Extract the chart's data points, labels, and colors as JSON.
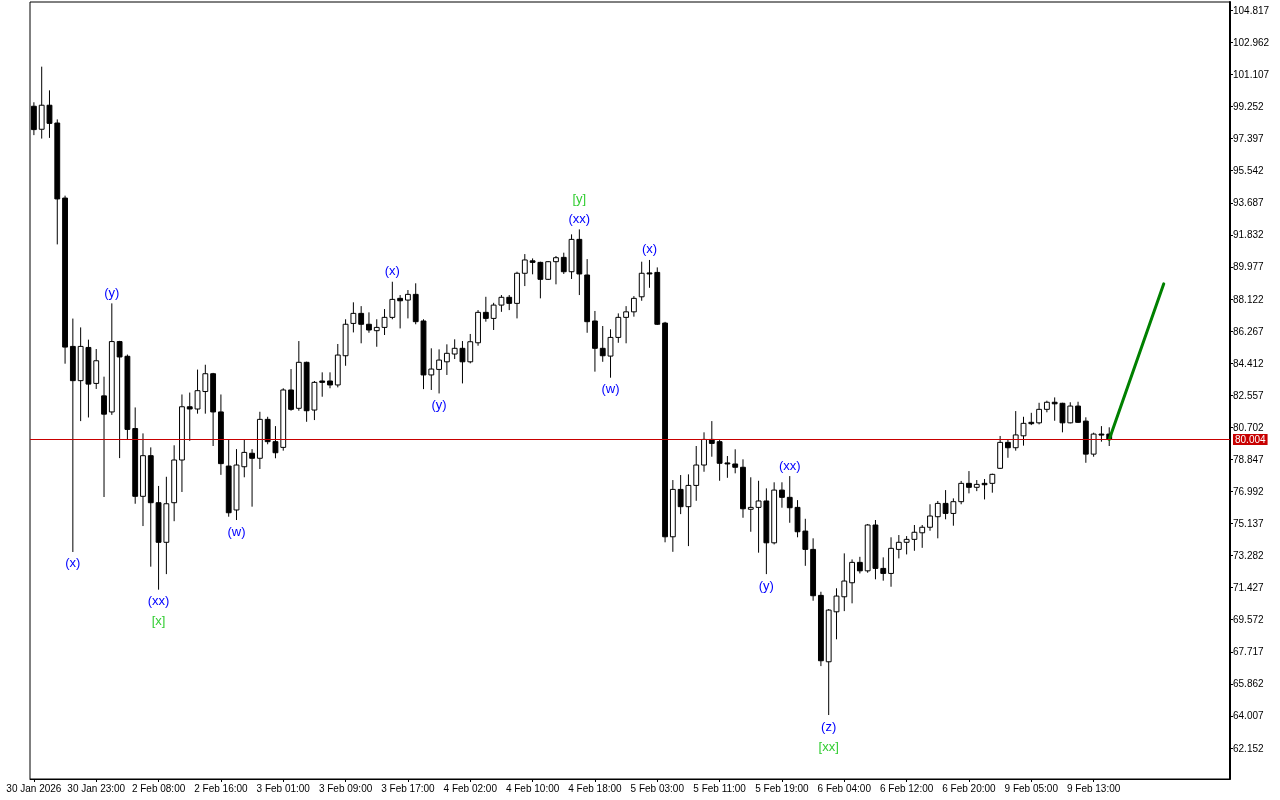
{
  "chart_data": {
    "type": "candlestick",
    "color": "#000000",
    "categories": [
      "30 Jan 2026",
      null,
      null,
      null,
      null,
      null,
      null,
      null,
      "30 Jan 23:00",
      null,
      null,
      null,
      null,
      null,
      null,
      null,
      "2 Feb 08:00",
      null,
      null,
      null,
      null,
      null,
      null,
      null,
      "2 Feb 16:00",
      null,
      null,
      null,
      null,
      null,
      null,
      null,
      "3 Feb 01:00",
      null,
      null,
      null,
      null,
      null,
      null,
      null,
      "3 Feb 09:00",
      null,
      null,
      null,
      null,
      null,
      null,
      null,
      "3 Feb 17:00",
      null,
      null,
      null,
      null,
      null,
      null,
      null,
      "4 Feb 02:00",
      null,
      null,
      null,
      null,
      null,
      null,
      null,
      "4 Feb 10:00",
      null,
      null,
      null,
      null,
      null,
      null,
      null,
      "4 Feb 18:00",
      null,
      null,
      null,
      null,
      null,
      null,
      null,
      "5 Feb 03:00",
      null,
      null,
      null,
      null,
      null,
      null,
      null,
      "5 Feb 11:00",
      null,
      null,
      null,
      null,
      null,
      null,
      null,
      "5 Feb 19:00",
      null,
      null,
      null,
      null,
      null,
      null,
      null,
      "6 Feb 04:00",
      null,
      null,
      null,
      null,
      null,
      null,
      null,
      "6 Feb 12:00",
      null,
      null,
      null,
      null,
      null,
      null,
      null,
      "6 Feb 20:00",
      null,
      null,
      null,
      null,
      null,
      null,
      null,
      "9 Feb 05:00",
      null,
      null,
      null,
      null,
      null,
      null,
      null,
      "9 Feb 13:00",
      null,
      null,
      null,
      null,
      null,
      null,
      null,
      null,
      null,
      null,
      null,
      null,
      null,
      null,
      null,
      null,
      null
    ],
    "ohlc": [
      [
        99.27,
        99.5,
        97.6,
        97.92
      ],
      [
        97.94,
        101.56,
        97.4,
        99.33
      ],
      [
        99.33,
        100.19,
        97.44,
        98.28
      ],
      [
        98.3,
        98.51,
        91.28,
        93.91
      ],
      [
        93.96,
        94.1,
        84.38,
        85.34
      ],
      [
        85.38,
        86.99,
        73.49,
        83.4
      ],
      [
        83.4,
        86.48,
        81.06,
        85.38
      ],
      [
        85.32,
        85.77,
        81.27,
        83.2
      ],
      [
        83.24,
        85.23,
        82.92,
        84.55
      ],
      [
        82.52,
        83.63,
        76.67,
        81.46
      ],
      [
        81.59,
        87.87,
        81.42,
        85.66
      ],
      [
        85.66,
        85.7,
        78.92,
        84.77
      ],
      [
        84.81,
        84.91,
        79.99,
        80.58
      ],
      [
        80.63,
        81.85,
        76.28,
        76.71
      ],
      [
        76.71,
        80.35,
        74.99,
        79.06
      ],
      [
        79.06,
        79.54,
        72.64,
        76.34
      ],
      [
        76.34,
        77.31,
        71.31,
        74.05
      ],
      [
        74.05,
        77.84,
        72.21,
        76.28
      ],
      [
        76.34,
        79.66,
        75.27,
        78.81
      ],
      [
        78.81,
        82.6,
        76.96,
        81.89
      ],
      [
        81.89,
        82.71,
        79.92,
        81.76
      ],
      [
        81.76,
        84.04,
        81.49,
        82.82
      ],
      [
        82.77,
        84.32,
        81.49,
        83.8
      ],
      [
        83.8,
        83.85,
        79.62,
        81.59
      ],
      [
        81.59,
        82.6,
        77.95,
        78.6
      ],
      [
        78.46,
        79.97,
        75.53,
        75.76
      ],
      [
        75.92,
        79.44,
        75.34,
        78.52
      ],
      [
        78.42,
        79.97,
        77.81,
        79.25
      ],
      [
        79.2,
        79.44,
        76.11,
        78.91
      ],
      [
        78.91,
        81.6,
        78.29,
        81.16
      ],
      [
        81.16,
        81.31,
        79.72,
        79.87
      ],
      [
        79.87,
        80.77,
        78.91,
        79.23
      ],
      [
        79.54,
        82.96,
        79.35,
        82.86
      ],
      [
        82.86,
        84.07,
        81.66,
        81.74
      ],
      [
        81.8,
        85.69,
        81.66,
        84.46
      ],
      [
        84.46,
        84.5,
        81.02,
        81.66
      ],
      [
        81.7,
        83.38,
        81.12,
        83.3
      ],
      [
        83.38,
        83.88,
        82.47,
        83.3
      ],
      [
        83.38,
        83.88,
        82.96,
        83.15
      ],
      [
        83.15,
        85.52,
        83.01,
        84.88
      ],
      [
        84.84,
        86.95,
        84.26,
        86.66
      ],
      [
        86.71,
        87.93,
        86.19,
        87.29
      ],
      [
        87.29,
        87.71,
        85.56,
        86.66
      ],
      [
        86.66,
        87.35,
        86.17,
        86.33
      ],
      [
        86.29,
        86.95,
        85.36,
        86.48
      ],
      [
        86.48,
        87.54,
        86.04,
        87.06
      ],
      [
        87.06,
        89.12,
        86.95,
        88.1
      ],
      [
        88.16,
        88.35,
        86.42,
        88.02
      ],
      [
        88.06,
        88.64,
        87.0,
        88.39
      ],
      [
        88.39,
        89.03,
        86.66,
        86.81
      ],
      [
        86.85,
        86.95,
        82.91,
        83.73
      ],
      [
        83.73,
        85.27,
        82.86,
        84.07
      ],
      [
        84.05,
        85.21,
        82.66,
        84.59
      ],
      [
        84.49,
        85.5,
        83.73,
        84.98
      ],
      [
        84.94,
        85.79,
        84.65,
        85.27
      ],
      [
        85.27,
        85.69,
        83.24,
        84.49
      ],
      [
        84.49,
        86.1,
        84.4,
        85.65
      ],
      [
        85.59,
        87.48,
        85.42,
        87.35
      ],
      [
        87.35,
        88.25,
        86.81,
        87.0
      ],
      [
        87.0,
        87.9,
        86.33,
        87.77
      ],
      [
        87.77,
        88.35,
        87.38,
        88.22
      ],
      [
        88.22,
        88.35,
        87.48,
        87.87
      ],
      [
        87.87,
        89.7,
        87.0,
        89.61
      ],
      [
        89.61,
        90.72,
        88.87,
        90.38
      ],
      [
        90.33,
        90.47,
        89.55,
        90.24
      ],
      [
        90.24,
        90.28,
        88.16,
        89.26
      ],
      [
        89.26,
        90.32,
        89.22,
        90.28
      ],
      [
        90.28,
        90.61,
        88.97,
        90.51
      ],
      [
        90.53,
        90.8,
        89.57,
        89.7
      ],
      [
        89.7,
        91.86,
        89.28,
        91.57
      ],
      [
        91.57,
        92.15,
        88.35,
        89.57
      ],
      [
        89.51,
        90.43,
        86.17,
        86.81
      ],
      [
        86.85,
        87.43,
        83.92,
        85.27
      ],
      [
        85.27,
        86.56,
        84.49,
        84.84
      ],
      [
        84.82,
        86.37,
        83.57,
        85.9
      ],
      [
        85.9,
        87.29,
        85.59,
        87.06
      ],
      [
        87.06,
        87.71,
        85.56,
        87.38
      ],
      [
        87.38,
        88.29,
        87.1,
        88.16
      ],
      [
        88.25,
        90.28,
        88.02,
        89.61
      ],
      [
        89.63,
        90.38,
        88.77,
        89.59
      ],
      [
        89.66,
        89.95,
        86.62,
        86.66
      ],
      [
        86.73,
        86.8,
        74.05,
        74.37
      ],
      [
        74.37,
        77.65,
        73.5,
        77.11
      ],
      [
        77.11,
        77.94,
        75.68,
        76.11
      ],
      [
        76.11,
        77.98,
        73.83,
        77.34
      ],
      [
        77.34,
        79.62,
        76.45,
        78.52
      ],
      [
        78.52,
        80.41,
        78.13,
        80.0
      ],
      [
        80.0,
        81.06,
        79.0,
        79.77
      ],
      [
        79.87,
        79.97,
        77.61,
        78.62
      ],
      [
        78.64,
        79.04,
        77.78,
        78.6
      ],
      [
        78.58,
        79.43,
        78.04,
        78.39
      ],
      [
        78.39,
        78.85,
        75.47,
        75.99
      ],
      [
        75.96,
        77.81,
        74.66,
        76.07
      ],
      [
        76.07,
        77.61,
        73.45,
        76.44
      ],
      [
        76.44,
        77.17,
        72.21,
        74.02
      ],
      [
        74.02,
        77.52,
        73.93,
        77.07
      ],
      [
        77.07,
        77.52,
        76.05,
        76.65
      ],
      [
        76.65,
        77.88,
        75.18,
        76.05
      ],
      [
        76.07,
        76.49,
        74.34,
        74.66
      ],
      [
        74.7,
        75.41,
        72.69,
        73.64
      ],
      [
        73.64,
        74.28,
        70.67,
        70.96
      ],
      [
        70.98,
        71.19,
        66.89,
        67.2
      ],
      [
        67.14,
        70.19,
        64.06,
        70.13
      ],
      [
        70.03,
        71.39,
        68.44,
        70.94
      ],
      [
        70.9,
        73.41,
        70.07,
        71.81
      ],
      [
        71.71,
        73.06,
        70.52,
        72.89
      ],
      [
        72.89,
        73.21,
        72.25,
        72.4
      ],
      [
        72.4,
        75.11,
        72.29,
        75.05
      ],
      [
        75.05,
        75.34,
        71.91,
        72.54
      ],
      [
        72.54,
        73.18,
        71.83,
        72.25
      ],
      [
        72.25,
        74.34,
        71.48,
        73.7
      ],
      [
        73.64,
        74.47,
        73.12,
        74.05
      ],
      [
        74.05,
        74.41,
        73.35,
        74.22
      ],
      [
        74.22,
        75.05,
        73.56,
        74.63
      ],
      [
        74.6,
        75.05,
        73.73,
        74.92
      ],
      [
        74.92,
        76.25,
        74.72,
        75.57
      ],
      [
        75.53,
        76.44,
        74.28,
        76.3
      ],
      [
        76.3,
        77.07,
        75.38,
        75.72
      ],
      [
        75.72,
        76.59,
        75.01,
        76.4
      ],
      [
        76.4,
        77.6,
        76.25,
        77.46
      ],
      [
        77.46,
        78.17,
        76.88,
        77.23
      ],
      [
        77.23,
        77.65,
        77.01,
        77.4
      ],
      [
        77.46,
        77.71,
        76.53,
        77.38
      ],
      [
        77.46,
        78.02,
        76.92,
        77.98
      ],
      [
        78.33,
        80.2,
        78.29,
        79.83
      ],
      [
        79.83,
        80.0,
        78.94,
        79.52
      ],
      [
        79.52,
        81.64,
        79.35,
        80.26
      ],
      [
        80.21,
        81.31,
        79.64,
        80.93
      ],
      [
        80.99,
        81.54,
        80.83,
        80.91
      ],
      [
        80.96,
        82.12,
        80.87,
        81.74
      ],
      [
        81.74,
        82.24,
        81.57,
        82.15
      ],
      [
        82.15,
        82.43,
        81.08,
        82.06
      ],
      [
        82.09,
        82.12,
        80.41,
        80.96
      ],
      [
        80.96,
        82.15,
        80.93,
        81.93
      ],
      [
        81.93,
        82.18,
        80.96,
        80.99
      ],
      [
        81.06,
        81.28,
        78.65,
        79.15
      ],
      [
        79.15,
        80.39,
        79.0,
        80.31
      ],
      [
        80.31,
        80.77,
        79.87,
        80.29
      ],
      [
        80.31,
        80.7,
        79.62,
        80.0
      ],
      null,
      null,
      null,
      null,
      null,
      null,
      null,
      null,
      null,
      null,
      null,
      null,
      null,
      null,
      null
    ],
    "series": [
      {
        "type": "line",
        "color": "#008000",
        "values": [
          null,
          null,
          null,
          null,
          null,
          null,
          null,
          null,
          null,
          null,
          null,
          null,
          null,
          null,
          null,
          null,
          null,
          null,
          null,
          null,
          null,
          null,
          null,
          null,
          null,
          null,
          null,
          null,
          null,
          null,
          null,
          null,
          null,
          null,
          null,
          null,
          null,
          null,
          null,
          null,
          null,
          null,
          null,
          null,
          null,
          null,
          null,
          null,
          null,
          null,
          null,
          null,
          null,
          null,
          null,
          null,
          null,
          null,
          null,
          null,
          null,
          null,
          null,
          null,
          null,
          null,
          null,
          null,
          null,
          null,
          null,
          null,
          null,
          null,
          null,
          null,
          null,
          null,
          null,
          null,
          null,
          null,
          null,
          null,
          null,
          null,
          null,
          null,
          null,
          null,
          null,
          null,
          null,
          null,
          null,
          null,
          null,
          null,
          null,
          null,
          null,
          null,
          null,
          null,
          null,
          null,
          null,
          null,
          null,
          null,
          null,
          null,
          null,
          null,
          null,
          null,
          null,
          null,
          null,
          null,
          null,
          null,
          null,
          null,
          null,
          null,
          null,
          null,
          null,
          null,
          null,
          null,
          null,
          null,
          null,
          null,
          null,
          null,
          80.0,
          null,
          null,
          null,
          null,
          null,
          null,
          89.0,
          null,
          null,
          null,
          null,
          null,
          null,
          null,
          null
        ]
      }
    ],
    "ylim": [
      60.36,
      105.3
    ],
    "yticks": [
      62.152,
      64.007,
      65.862,
      67.717,
      69.572,
      71.427,
      73.282,
      75.137,
      76.992,
      78.847,
      80.702,
      82.557,
      84.412,
      86.267,
      88.122,
      89.977,
      91.832,
      93.687,
      95.542,
      97.397,
      99.252,
      101.107,
      102.962,
      104.817
    ],
    "ref_lines": [
      {
        "axis": "y",
        "value": 80.004,
        "label": "80.004",
        "color": "#c80000"
      }
    ],
    "annotations": [
      {
        "text": "(x)",
        "y": 73.49
      },
      {
        "text": "(y)",
        "y": 87.87
      },
      {
        "text": "(xx)",
        "x": "2 Feb 08:00",
        "y": 71.31
      },
      {
        "text": "[x]",
        "x": "2 Feb 08:00",
        "y": 71.31
      },
      {
        "text": "(w)",
        "y": 75.34
      },
      {
        "text": "(x)",
        "y": 89.12
      },
      {
        "text": "(y)",
        "y": 82.66
      },
      {
        "text": "(xx)",
        "y": 92.15
      },
      {
        "text": "[y]",
        "y": 92.15
      },
      {
        "text": "(w)",
        "y": 83.57
      },
      {
        "text": "(x)",
        "y": 90.38
      },
      {
        "text": "(y)",
        "y": 72.21
      },
      {
        "text": "(xx)",
        "y": 77.88
      },
      {
        "text": "(z)",
        "y": 64.06
      },
      {
        "text": "[xx]",
        "y": 64.06
      }
    ]
  }
}
